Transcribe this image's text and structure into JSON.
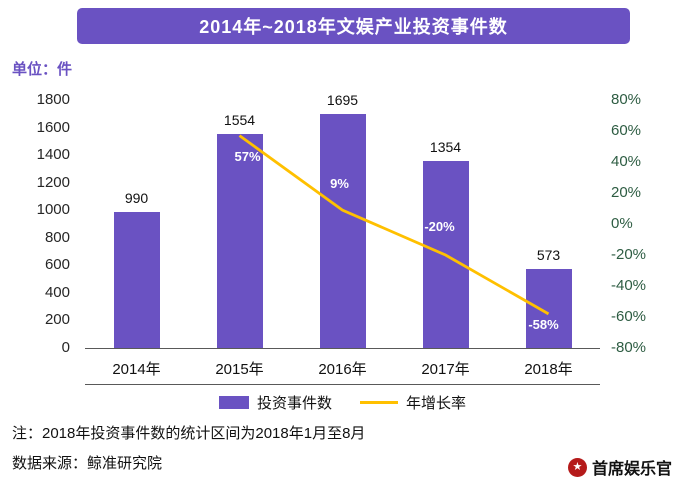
{
  "chart_data": {
    "type": "bar+line",
    "title": "2014年~2018年文娱产业投资事件数",
    "categories": [
      "2014年",
      "2015年",
      "2016年",
      "2017年",
      "2018年"
    ],
    "series": [
      {
        "name": "投资事件数",
        "type": "bar",
        "axis": "left",
        "values": [
          990,
          1554,
          1695,
          1354,
          573
        ],
        "color": "#6A52C2"
      },
      {
        "name": "年增长率",
        "type": "line",
        "axis": "right",
        "values": [
          null,
          57,
          9,
          -20,
          -58
        ],
        "point_labels": [
          "",
          "57%",
          "9%",
          "-20%",
          "-58%"
        ],
        "color": "#FFC000"
      }
    ],
    "left_axis": {
      "min": 0,
      "max": 1800,
      "step": 200,
      "ticks": [
        "1800",
        "1600",
        "1400",
        "1200",
        "1000",
        "800",
        "600",
        "400",
        "200",
        "0"
      ]
    },
    "right_axis": {
      "min": -80,
      "max": 80,
      "step": 20,
      "ticks": [
        "80%",
        "60%",
        "40%",
        "20%",
        "0%",
        "-20%",
        "-40%",
        "-60%",
        "-80%"
      ]
    },
    "legend_position": "bottom",
    "grid": false
  },
  "unit_label": "单位：件",
  "notes": {
    "note1": "注：2018年投资事件数的统计区间为2018年1月至8月",
    "note2": "数据来源：鲸准研究院"
  },
  "brand": {
    "name": "首席娱乐官",
    "logo_color": "#B51A1A"
  },
  "colors": {
    "title_bg": "#6A52C2",
    "bar": "#6A52C2",
    "line": "#FFC000",
    "right_axis_text": "#2E5D43",
    "axis_line": "#595959"
  }
}
